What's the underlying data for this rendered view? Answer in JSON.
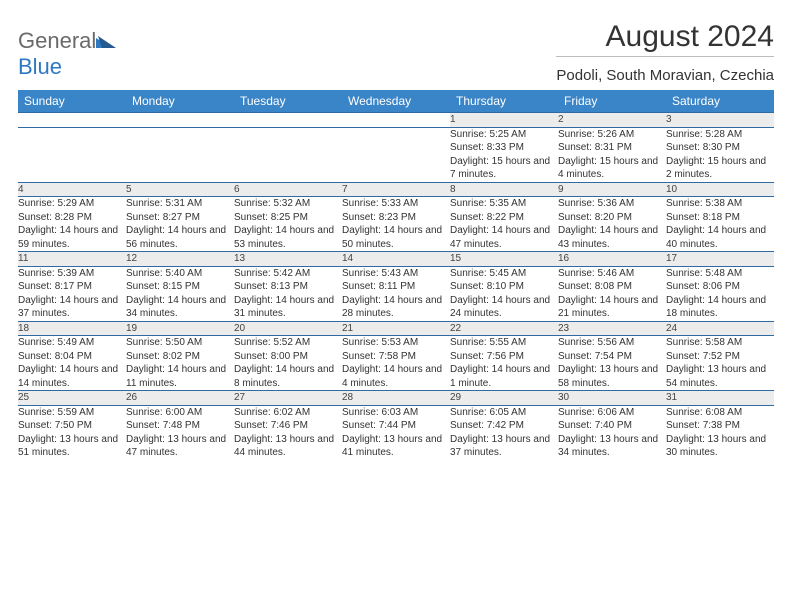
{
  "logo": {
    "text1": "General",
    "text2": "Blue"
  },
  "title": "August 2024",
  "location": "Podoli, South Moravian, Czechia",
  "colors": {
    "header_bg": "#3a84c8",
    "header_text": "#ffffff",
    "daynum_bg": "#ececec",
    "row_divider": "#2f6aa3",
    "logo_gray": "#6a6a6a",
    "logo_blue": "#2f78c4"
  },
  "weekdays": [
    "Sunday",
    "Monday",
    "Tuesday",
    "Wednesday",
    "Thursday",
    "Friday",
    "Saturday"
  ],
  "weeks": [
    {
      "nums": [
        "",
        "",
        "",
        "",
        "1",
        "2",
        "3"
      ],
      "info": [
        "",
        "",
        "",
        "",
        "Sunrise: 5:25 AM\nSunset: 8:33 PM\nDaylight: 15 hours and 7 minutes.",
        "Sunrise: 5:26 AM\nSunset: 8:31 PM\nDaylight: 15 hours and 4 minutes.",
        "Sunrise: 5:28 AM\nSunset: 8:30 PM\nDaylight: 15 hours and 2 minutes."
      ]
    },
    {
      "nums": [
        "4",
        "5",
        "6",
        "7",
        "8",
        "9",
        "10"
      ],
      "info": [
        "Sunrise: 5:29 AM\nSunset: 8:28 PM\nDaylight: 14 hours and 59 minutes.",
        "Sunrise: 5:31 AM\nSunset: 8:27 PM\nDaylight: 14 hours and 56 minutes.",
        "Sunrise: 5:32 AM\nSunset: 8:25 PM\nDaylight: 14 hours and 53 minutes.",
        "Sunrise: 5:33 AM\nSunset: 8:23 PM\nDaylight: 14 hours and 50 minutes.",
        "Sunrise: 5:35 AM\nSunset: 8:22 PM\nDaylight: 14 hours and 47 minutes.",
        "Sunrise: 5:36 AM\nSunset: 8:20 PM\nDaylight: 14 hours and 43 minutes.",
        "Sunrise: 5:38 AM\nSunset: 8:18 PM\nDaylight: 14 hours and 40 minutes."
      ]
    },
    {
      "nums": [
        "11",
        "12",
        "13",
        "14",
        "15",
        "16",
        "17"
      ],
      "info": [
        "Sunrise: 5:39 AM\nSunset: 8:17 PM\nDaylight: 14 hours and 37 minutes.",
        "Sunrise: 5:40 AM\nSunset: 8:15 PM\nDaylight: 14 hours and 34 minutes.",
        "Sunrise: 5:42 AM\nSunset: 8:13 PM\nDaylight: 14 hours and 31 minutes.",
        "Sunrise: 5:43 AM\nSunset: 8:11 PM\nDaylight: 14 hours and 28 minutes.",
        "Sunrise: 5:45 AM\nSunset: 8:10 PM\nDaylight: 14 hours and 24 minutes.",
        "Sunrise: 5:46 AM\nSunset: 8:08 PM\nDaylight: 14 hours and 21 minutes.",
        "Sunrise: 5:48 AM\nSunset: 8:06 PM\nDaylight: 14 hours and 18 minutes."
      ]
    },
    {
      "nums": [
        "18",
        "19",
        "20",
        "21",
        "22",
        "23",
        "24"
      ],
      "info": [
        "Sunrise: 5:49 AM\nSunset: 8:04 PM\nDaylight: 14 hours and 14 minutes.",
        "Sunrise: 5:50 AM\nSunset: 8:02 PM\nDaylight: 14 hours and 11 minutes.",
        "Sunrise: 5:52 AM\nSunset: 8:00 PM\nDaylight: 14 hours and 8 minutes.",
        "Sunrise: 5:53 AM\nSunset: 7:58 PM\nDaylight: 14 hours and 4 minutes.",
        "Sunrise: 5:55 AM\nSunset: 7:56 PM\nDaylight: 14 hours and 1 minute.",
        "Sunrise: 5:56 AM\nSunset: 7:54 PM\nDaylight: 13 hours and 58 minutes.",
        "Sunrise: 5:58 AM\nSunset: 7:52 PM\nDaylight: 13 hours and 54 minutes."
      ]
    },
    {
      "nums": [
        "25",
        "26",
        "27",
        "28",
        "29",
        "30",
        "31"
      ],
      "info": [
        "Sunrise: 5:59 AM\nSunset: 7:50 PM\nDaylight: 13 hours and 51 minutes.",
        "Sunrise: 6:00 AM\nSunset: 7:48 PM\nDaylight: 13 hours and 47 minutes.",
        "Sunrise: 6:02 AM\nSunset: 7:46 PM\nDaylight: 13 hours and 44 minutes.",
        "Sunrise: 6:03 AM\nSunset: 7:44 PM\nDaylight: 13 hours and 41 minutes.",
        "Sunrise: 6:05 AM\nSunset: 7:42 PM\nDaylight: 13 hours and 37 minutes.",
        "Sunrise: 6:06 AM\nSunset: 7:40 PM\nDaylight: 13 hours and 34 minutes.",
        "Sunrise: 6:08 AM\nSunset: 7:38 PM\nDaylight: 13 hours and 30 minutes."
      ]
    }
  ]
}
